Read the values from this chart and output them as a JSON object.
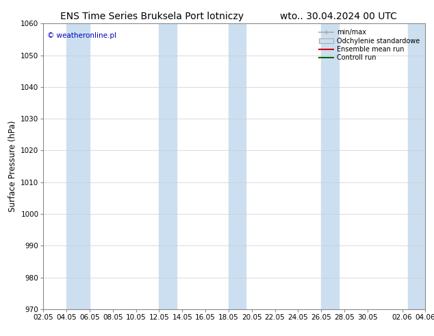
{
  "title_left": "ENS Time Series Bruksela Port lotniczy",
  "title_right": "wto.. 30.04.2024 00 UTC",
  "ylabel": "Surface Pressure (hPa)",
  "ylim": [
    970,
    1060
  ],
  "yticks": [
    970,
    980,
    990,
    1000,
    1010,
    1020,
    1030,
    1040,
    1050,
    1060
  ],
  "xtick_labels": [
    "02.05",
    "04.05",
    "06.05",
    "08.05",
    "10.05",
    "12.05",
    "14.05",
    "16.05",
    "18.05",
    "20.05",
    "22.05",
    "24.05",
    "26.05",
    "28.05",
    "30.05",
    "02.06",
    "04.06"
  ],
  "band_color": "#ccdff0",
  "background_color": "#ffffff",
  "watermark": "© weatheronline.pl",
  "watermark_color": "#0000bb",
  "legend_labels": [
    "min/max",
    "Odchylenie standardowe",
    "Ensemble mean run",
    "Controll run"
  ],
  "legend_line_color": "#aaaaaa",
  "legend_red": "#cc0000",
  "legend_green": "#006600",
  "title_fontsize": 10,
  "tick_fontsize": 7.5
}
